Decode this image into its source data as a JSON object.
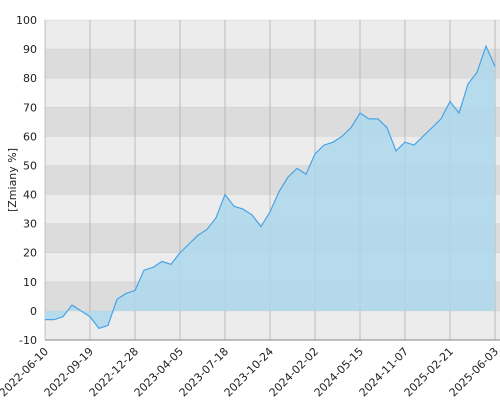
{
  "chart_data": {
    "type": "area",
    "ylabel": "[Zmiany %]",
    "categories": [
      "2022-06-10",
      null,
      null,
      null,
      null,
      "2022-09-19",
      null,
      null,
      null,
      null,
      "2022-12-28",
      null,
      null,
      null,
      null,
      "2023-04-05",
      null,
      null,
      null,
      null,
      "2023-07-18",
      null,
      null,
      null,
      null,
      "2023-10-24",
      null,
      null,
      null,
      null,
      "2024-02-02",
      null,
      null,
      null,
      null,
      "2024-05-15",
      null,
      null,
      null,
      null,
      "2024-11-07",
      null,
      null,
      null,
      null,
      "2025-02-21",
      null,
      null,
      null,
      null,
      "2025-06-03"
    ],
    "values": [
      -3,
      -3,
      -2,
      2,
      0,
      -2,
      -6,
      -5,
      4,
      6,
      7,
      14,
      15,
      17,
      16,
      20,
      23,
      26,
      28,
      32,
      40,
      36,
      35,
      33,
      29,
      34,
      41,
      46,
      49,
      47,
      54,
      57,
      58,
      60,
      63,
      68,
      66,
      66,
      63,
      55,
      58,
      57,
      60,
      63,
      66,
      72,
      68,
      78,
      82,
      91,
      84
    ],
    "color": "#4aa3e6",
    "fill": "#add8ec",
    "ylim": [
      -10,
      100
    ],
    "yticks": [
      -10,
      0,
      10,
      20,
      30,
      40,
      50,
      60,
      70,
      80,
      90,
      100
    ],
    "grid": true
  }
}
